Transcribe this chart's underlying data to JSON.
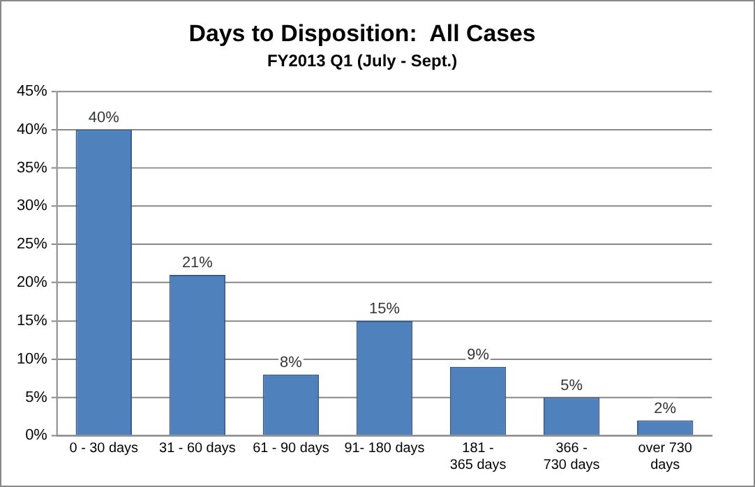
{
  "chart_data": {
    "type": "bar",
    "title": "Days to Disposition:  All Cases",
    "subtitle": "FY2013 Q1 (July - Sept.)",
    "categories": [
      "0 - 30 days",
      "31 - 60 days",
      "61 - 90 days",
      "91- 180 days",
      "181 - 365 days",
      "366 - 730 days",
      "over 730 days"
    ],
    "values": [
      40,
      21,
      8,
      15,
      9,
      5,
      2
    ],
    "value_labels": [
      "40%",
      "21%",
      "8%",
      "15%",
      "9%",
      "5%",
      "2%"
    ],
    "color": "#4f81bd",
    "ylim": [
      0,
      45
    ],
    "yticks": [
      {
        "value": 0,
        "label": "0%"
      },
      {
        "value": 5,
        "label": "5%"
      },
      {
        "value": 10,
        "label": "10%"
      },
      {
        "value": 15,
        "label": "15%"
      },
      {
        "value": 20,
        "label": "20%"
      },
      {
        "value": 25,
        "label": "25%"
      },
      {
        "value": 30,
        "label": "30%"
      },
      {
        "value": 35,
        "label": "35%"
      },
      {
        "value": 40,
        "label": "40%"
      },
      {
        "value": 45,
        "label": "45%"
      }
    ],
    "grid": "y",
    "legend": false
  }
}
